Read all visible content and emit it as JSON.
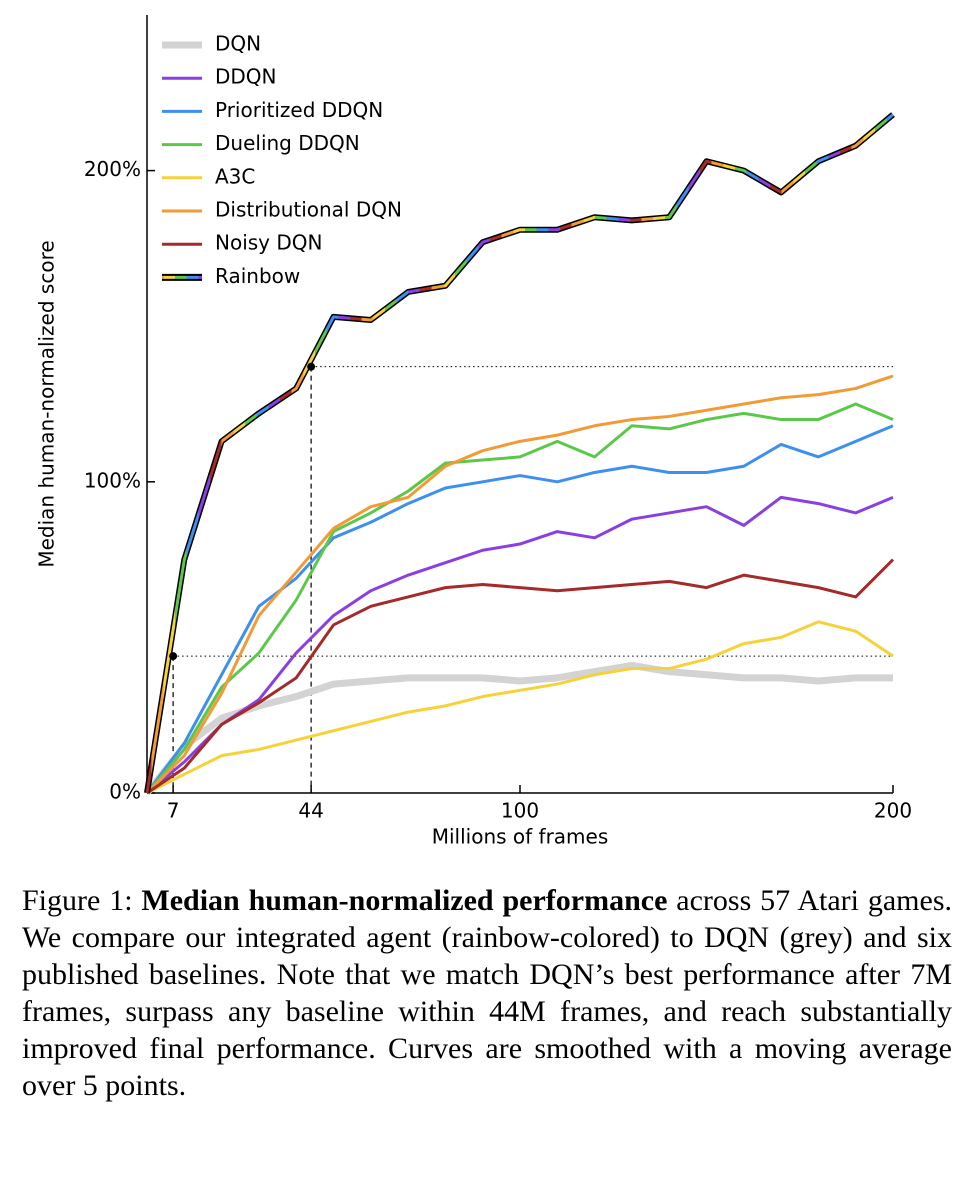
{
  "chart_data": {
    "type": "line",
    "x_label": "Millions of frames",
    "y_label": "Median human-normalized score",
    "x": [
      0,
      10,
      20,
      30,
      40,
      50,
      60,
      70,
      80,
      90,
      100,
      110,
      120,
      130,
      140,
      150,
      160,
      170,
      180,
      190,
      200
    ],
    "xlim": [
      0,
      200
    ],
    "xticks": [
      7,
      44,
      100,
      200
    ],
    "ylim": [
      0,
      250
    ],
    "yticks": [
      {
        "value": 0,
        "label": "0%"
      },
      {
        "value": 100,
        "label": "100%"
      },
      {
        "value": 200,
        "label": "200%"
      }
    ],
    "legend": "upper left",
    "series": [
      {
        "name": "DQN",
        "color": "#d3d3d3",
        "values": [
          0,
          15,
          24,
          28,
          31,
          35,
          36,
          37,
          37,
          37,
          36,
          37,
          39,
          41,
          39,
          38,
          37,
          37,
          36,
          37,
          37
        ]
      },
      {
        "name": "DDQN",
        "color": "#8a3fe0",
        "values": [
          0,
          10,
          22,
          30,
          45,
          57,
          65,
          70,
          74,
          78,
          80,
          84,
          82,
          88,
          90,
          92,
          86,
          95,
          93,
          90,
          95
        ]
      },
      {
        "name": "Prioritized DDQN",
        "color": "#3d8ff0",
        "values": [
          0,
          16,
          38,
          60,
          69,
          82,
          87,
          93,
          98,
          100,
          102,
          100,
          103,
          105,
          103,
          103,
          105,
          112,
          108,
          113,
          118
        ]
      },
      {
        "name": "Dueling DDQN",
        "color": "#5cc84a",
        "values": [
          0,
          14,
          34,
          45,
          62,
          84,
          90,
          97,
          106,
          107,
          108,
          113,
          108,
          118,
          117,
          120,
          122,
          120,
          120,
          125,
          120
        ]
      },
      {
        "name": "A3C",
        "color": "#f6d23a",
        "values": [
          0,
          6,
          12,
          14,
          17,
          20,
          23,
          26,
          28,
          31,
          33,
          35,
          38,
          40,
          40,
          43,
          48,
          50,
          55,
          52,
          44
        ]
      },
      {
        "name": "Distributional DQN",
        "color": "#f29a35",
        "values": [
          0,
          12,
          32,
          57,
          71,
          85,
          92,
          95,
          105,
          110,
          113,
          115,
          118,
          120,
          121,
          123,
          125,
          127,
          128,
          130,
          134
        ]
      },
      {
        "name": "Noisy DQN",
        "color": "#a52a2a",
        "values": [
          0,
          8,
          22,
          29,
          37,
          54,
          60,
          63,
          66,
          67,
          66,
          65,
          66,
          67,
          68,
          66,
          70,
          68,
          66,
          63,
          75
        ]
      },
      {
        "name": "Rainbow",
        "color": "#000000",
        "colors": [
          "#a52a2a",
          "#f29a35",
          "#f6d23a",
          "#5cc84a",
          "#3d8ff0",
          "#8a3fe0"
        ],
        "values": [
          0,
          75,
          113,
          122,
          130,
          153,
          152,
          161,
          163,
          177,
          181,
          181,
          185,
          184,
          185,
          203,
          200,
          193,
          203,
          208,
          218
        ]
      }
    ],
    "reference_lines": [
      {
        "x": 7,
        "y": 44
      },
      {
        "x": 44,
        "y": 137
      }
    ]
  },
  "caption": {
    "label": "Figure 1:",
    "bold": "Median human-normalized performance",
    "text": "across 57 Atari games. We compare our integrated agent (rainbow-colored) to DQN (grey) and six published baselines. Note that we match DQN’s best performance after 7M frames, surpass any baseline within 44M frames, and reach substantially improved final performance. Curves are smoothed with a moving average over 5 points."
  }
}
